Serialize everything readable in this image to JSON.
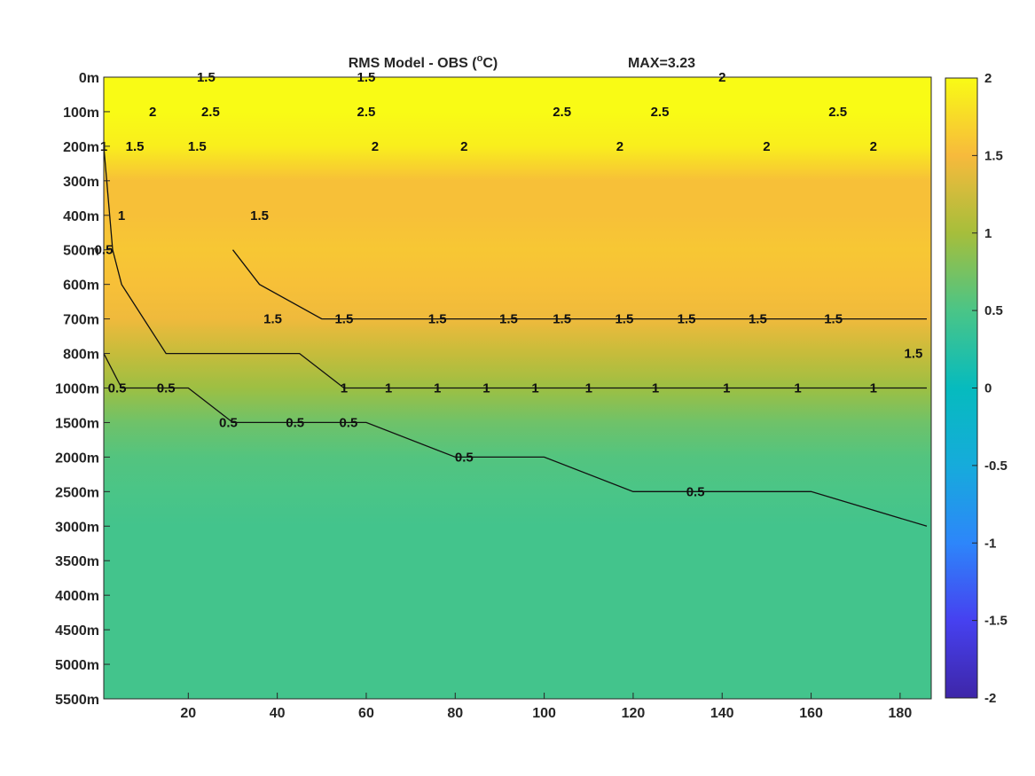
{
  "chart_data": {
    "type": "heatmap",
    "title": "RMS Model - OBS (°C)",
    "title_main": "RMS Model - OBS (",
    "title_unit_sup": "o",
    "title_unit_end": "C)",
    "max_label": "MAX=3.23",
    "x_ticks": [
      "20",
      "40",
      "60",
      "80",
      "100",
      "120",
      "140",
      "160",
      "180"
    ],
    "x_tick_values": [
      20,
      40,
      60,
      80,
      100,
      120,
      140,
      160,
      180
    ],
    "xlim": [
      1,
      187
    ],
    "y_ticks": [
      "0m",
      "100m",
      "200m",
      "300m",
      "400m",
      "500m",
      "600m",
      "700m",
      "800m",
      "1000m",
      "1500m",
      "2000m",
      "2500m",
      "3000m",
      "3500m",
      "4000m",
      "4500m",
      "5000m",
      "5500m"
    ],
    "colorbar": {
      "ticks": [
        "2",
        "1.5",
        "1",
        "0.5",
        "0",
        "-0.5",
        "-1",
        "-1.5",
        "-2"
      ],
      "tick_values": [
        2,
        1.5,
        1,
        0.5,
        0,
        -0.5,
        -1,
        -1.5,
        -2
      ],
      "clim": [
        -2,
        2
      ],
      "colormap": "parula"
    },
    "field_profile": [
      {
        "depth": "0m",
        "value": 2.2
      },
      {
        "depth": "100m",
        "value": 2.2
      },
      {
        "depth": "200m",
        "value": 1.9
      },
      {
        "depth": "300m",
        "value": 1.55
      },
      {
        "depth": "400m",
        "value": 1.55
      },
      {
        "depth": "500m",
        "value": 1.6
      },
      {
        "depth": "600m",
        "value": 1.55
      },
      {
        "depth": "700m",
        "value": 1.45
      },
      {
        "depth": "800m",
        "value": 1.2
      },
      {
        "depth": "1000m",
        "value": 0.95
      },
      {
        "depth": "1500m",
        "value": 0.7
      },
      {
        "depth": "2000m",
        "value": 0.55
      },
      {
        "depth": "2500m",
        "value": 0.5
      },
      {
        "depth": "3000m",
        "value": 0.45
      },
      {
        "depth": "3500m",
        "value": 0.45
      },
      {
        "depth": "4000m",
        "value": 0.45
      },
      {
        "depth": "4500m",
        "value": 0.45
      },
      {
        "depth": "5000m",
        "value": 0.45
      },
      {
        "depth": "5500m",
        "value": 0.45
      }
    ],
    "contour_levels": [
      0.5,
      1,
      1.5,
      2,
      2.5
    ],
    "contours": [
      {
        "level": 0.5,
        "points": [
          [
            1,
            800
          ],
          [
            5,
            1000
          ],
          [
            12,
            1000
          ],
          [
            20,
            1000
          ],
          [
            30,
            1500
          ],
          [
            45,
            1500
          ],
          [
            60,
            1500
          ],
          [
            80,
            2000
          ],
          [
            100,
            2000
          ],
          [
            120,
            2500
          ],
          [
            140,
            2500
          ],
          [
            160,
            2500
          ],
          [
            186,
            3000
          ]
        ]
      },
      {
        "level": 1,
        "points": [
          [
            1,
            200
          ],
          [
            3,
            500
          ],
          [
            5,
            600
          ],
          [
            10,
            700
          ],
          [
            15,
            800
          ],
          [
            30,
            800
          ],
          [
            45,
            800
          ],
          [
            55,
            1000
          ],
          [
            70,
            1000
          ],
          [
            90,
            1000
          ],
          [
            110,
            1000
          ],
          [
            130,
            1000
          ],
          [
            150,
            1000
          ],
          [
            170,
            1000
          ],
          [
            186,
            1000
          ]
        ]
      },
      {
        "level": 1.5,
        "points": [
          [
            30,
            500
          ],
          [
            36,
            600
          ],
          [
            50,
            700
          ],
          [
            70,
            700
          ],
          [
            90,
            700
          ],
          [
            110,
            700
          ],
          [
            130,
            700
          ],
          [
            150,
            700
          ],
          [
            170,
            700
          ],
          [
            186,
            700
          ]
        ]
      }
    ],
    "contour_labels": [
      {
        "text": "0.5",
        "x": 4,
        "depth": "1000m"
      },
      {
        "text": "0.5",
        "x": 15,
        "depth": "1000m"
      },
      {
        "text": "0.5",
        "x": 29,
        "depth": "1500m"
      },
      {
        "text": "0.5",
        "x": 44,
        "depth": "1500m"
      },
      {
        "text": "0.5",
        "x": 56,
        "depth": "1500m"
      },
      {
        "text": "0.5",
        "x": 82,
        "depth": "2000m"
      },
      {
        "text": "0.5",
        "x": 134,
        "depth": "2500m"
      },
      {
        "text": "0.5",
        "x": 1,
        "depth": "500m"
      },
      {
        "text": "1",
        "x": 55,
        "depth": "1000m"
      },
      {
        "text": "1",
        "x": 65,
        "depth": "1000m"
      },
      {
        "text": "1",
        "x": 76,
        "depth": "1000m"
      },
      {
        "text": "1",
        "x": 87,
        "depth": "1000m"
      },
      {
        "text": "1",
        "x": 98,
        "depth": "1000m"
      },
      {
        "text": "1",
        "x": 110,
        "depth": "1000m"
      },
      {
        "text": "1",
        "x": 125,
        "depth": "1000m"
      },
      {
        "text": "1",
        "x": 141,
        "depth": "1000m"
      },
      {
        "text": "1",
        "x": 157,
        "depth": "1000m"
      },
      {
        "text": "1",
        "x": 174,
        "depth": "1000m"
      },
      {
        "text": "1",
        "x": 5,
        "depth": "400m"
      },
      {
        "text": "1",
        "x": 1,
        "depth": "200m"
      },
      {
        "text": "1.5",
        "x": 39,
        "depth": "700m"
      },
      {
        "text": "1.5",
        "x": 55,
        "depth": "700m"
      },
      {
        "text": "1.5",
        "x": 76,
        "depth": "700m"
      },
      {
        "text": "1.5",
        "x": 92,
        "depth": "700m"
      },
      {
        "text": "1.5",
        "x": 104,
        "depth": "700m"
      },
      {
        "text": "1.5",
        "x": 118,
        "depth": "700m"
      },
      {
        "text": "1.5",
        "x": 132,
        "depth": "700m"
      },
      {
        "text": "1.5",
        "x": 148,
        "depth": "700m"
      },
      {
        "text": "1.5",
        "x": 165,
        "depth": "700m"
      },
      {
        "text": "1.5",
        "x": 183,
        "depth": "800m"
      },
      {
        "text": "1.5",
        "x": 8,
        "depth": "200m"
      },
      {
        "text": "1.5",
        "x": 22,
        "depth": "200m"
      },
      {
        "text": "1.5",
        "x": 36,
        "depth": "400m"
      },
      {
        "text": "2",
        "x": 12,
        "depth": "100m"
      },
      {
        "text": "2",
        "x": 62,
        "depth": "200m"
      },
      {
        "text": "2",
        "x": 82,
        "depth": "200m"
      },
      {
        "text": "2",
        "x": 117,
        "depth": "200m"
      },
      {
        "text": "2",
        "x": 150,
        "depth": "200m"
      },
      {
        "text": "2",
        "x": 174,
        "depth": "200m"
      },
      {
        "text": "2.5",
        "x": 25,
        "depth": "100m"
      },
      {
        "text": "2.5",
        "x": 60,
        "depth": "100m"
      },
      {
        "text": "2.5",
        "x": 104,
        "depth": "100m"
      },
      {
        "text": "2.5",
        "x": 126,
        "depth": "100m"
      },
      {
        "text": "2.5",
        "x": 166,
        "depth": "100m"
      },
      {
        "text": "1.5",
        "x": 24,
        "depth": "0m"
      },
      {
        "text": "1.5",
        "x": 60,
        "depth": "0m"
      },
      {
        "text": "2",
        "x": 140,
        "depth": "0m"
      }
    ]
  }
}
